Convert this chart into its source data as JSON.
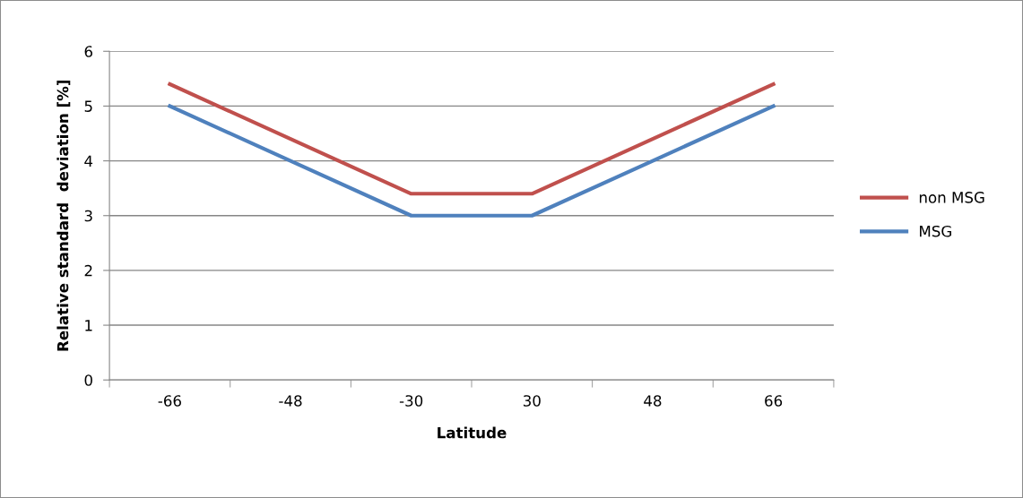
{
  "chart_data": {
    "type": "line",
    "xlabel": "Latitude",
    "ylabel": "Relative standard  deviation [%]",
    "categories": [
      "-66",
      "-48",
      "-30",
      "30",
      "48",
      "66"
    ],
    "series": [
      {
        "name": "non MSG",
        "color": "#c0504d",
        "values": [
          5.4,
          4.4,
          3.4,
          3.4,
          4.4,
          5.4
        ]
      },
      {
        "name": "MSG",
        "color": "#4f81bd",
        "values": [
          5,
          4,
          3,
          3,
          4,
          5
        ]
      }
    ],
    "ylim": [
      0,
      6
    ],
    "yticks": [
      0,
      1,
      2,
      3,
      4,
      5,
      6
    ],
    "grid": "y",
    "legend": "right",
    "marker": "none",
    "line_style": "solid"
  }
}
